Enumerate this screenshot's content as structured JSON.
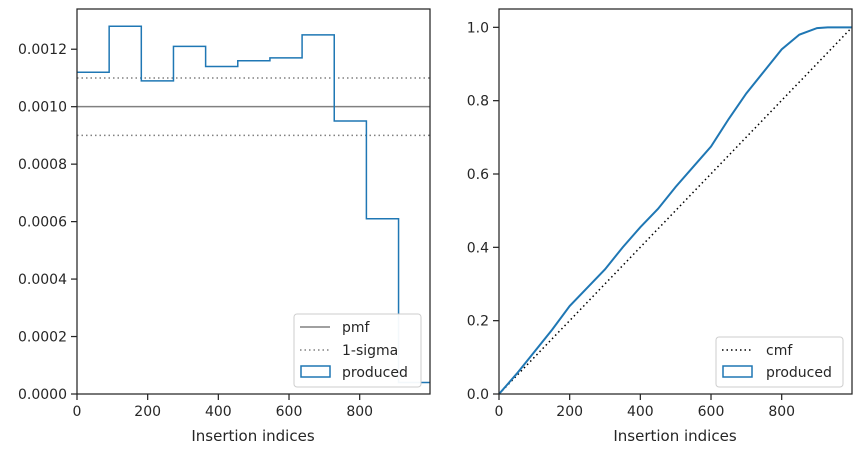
{
  "colors": {
    "produced": "#1f77b4",
    "pmf": "#808080",
    "sigma": "#808080",
    "cmf": "#000000",
    "axes": "#262626",
    "background": "#ffffff"
  },
  "chart_data": [
    {
      "type": "step",
      "title": "",
      "xlabel": "Insertion indices",
      "ylabel": "",
      "xlim": [
        0,
        999
      ],
      "ylim": [
        0,
        0.00134
      ],
      "xticks": [
        0,
        200,
        400,
        600,
        800
      ],
      "xtick_labels": [
        "0",
        "200",
        "400",
        "600",
        "800"
      ],
      "yticks": [
        0,
        0.0002,
        0.0004,
        0.0006,
        0.0008,
        0.001,
        0.0012
      ],
      "ytick_labels": [
        "0.0000",
        "0.0002",
        "0.0004",
        "0.0006",
        "0.0008",
        "0.0010",
        "0.0012"
      ],
      "grid": false,
      "legend_position": "lower right",
      "legend": [
        "pmf",
        "1-sigma",
        "produced"
      ],
      "reference_lines": [
        {
          "name": "pmf",
          "y": 0.001,
          "style": "solid"
        },
        {
          "name": "1-sigma",
          "y": 0.0011,
          "style": "dotted"
        },
        {
          "name": "1-sigma",
          "y": 0.0009,
          "style": "dotted"
        }
      ],
      "series": [
        {
          "name": "produced",
          "bin_edges": [
            0,
            91,
            182,
            273,
            364,
            455,
            546,
            637,
            728,
            819,
            910,
            999
          ],
          "values": [
            0.00112,
            0.00128,
            0.00109,
            0.00121,
            0.00114,
            0.00116,
            0.00117,
            0.00125,
            0.00095,
            0.00061,
            4e-05
          ]
        }
      ]
    },
    {
      "type": "line",
      "title": "",
      "xlabel": "Insertion indices",
      "ylabel": "",
      "xlim": [
        0,
        999
      ],
      "ylim": [
        0,
        1.05
      ],
      "xticks": [
        0,
        200,
        400,
        600,
        800
      ],
      "xtick_labels": [
        "0",
        "200",
        "400",
        "600",
        "800"
      ],
      "yticks": [
        0,
        0.2,
        0.4,
        0.6,
        0.8,
        1.0
      ],
      "ytick_labels": [
        "0.0",
        "0.2",
        "0.4",
        "0.6",
        "0.8",
        "1.0"
      ],
      "grid": false,
      "legend_position": "lower right",
      "legend": [
        "cmf",
        "produced"
      ],
      "series": [
        {
          "name": "cmf",
          "style": "dotted",
          "x": [
            0,
            999
          ],
          "y": [
            0,
            1.0
          ]
        },
        {
          "name": "produced",
          "x": [
            0,
            50,
            100,
            150,
            200,
            250,
            300,
            350,
            400,
            450,
            500,
            550,
            600,
            650,
            700,
            750,
            800,
            850,
            900,
            930,
            999
          ],
          "y": [
            0,
            0.055,
            0.115,
            0.175,
            0.24,
            0.29,
            0.34,
            0.4,
            0.455,
            0.505,
            0.565,
            0.62,
            0.675,
            0.75,
            0.82,
            0.88,
            0.94,
            0.98,
            0.998,
            1.0,
            1.0
          ]
        }
      ]
    }
  ]
}
